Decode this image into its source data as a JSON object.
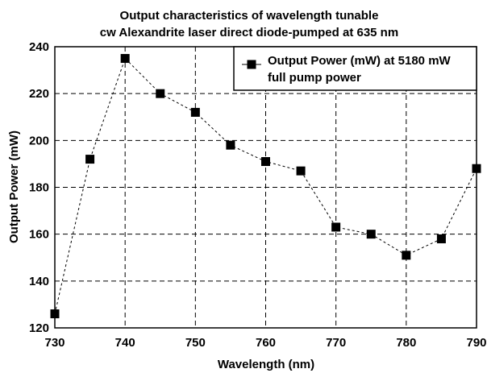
{
  "chart_data": {
    "type": "line",
    "title": "Output characteristics of wavelength tunable",
    "subtitle": "cw Alexandrite laser direct diode-pumped at 635 nm",
    "xlabel": "Wavelength (nm)",
    "ylabel": "Output Power (mW)",
    "xlim": [
      730,
      790
    ],
    "ylim": [
      120,
      240
    ],
    "xticks": [
      730,
      740,
      750,
      760,
      770,
      780,
      790
    ],
    "yticks": [
      120,
      140,
      160,
      180,
      200,
      220,
      240
    ],
    "grid": true,
    "legend_position": "top-right",
    "series": [
      {
        "name": "Output Power (mW) at 5180 mW full pump power",
        "name_lines": [
          "Output Power (mW) at 5180 mW",
          "full pump power"
        ],
        "marker": "square",
        "line_style": "dashed",
        "x": [
          730,
          735,
          740,
          745,
          750,
          755,
          760,
          765,
          770,
          775,
          780,
          785,
          790
        ],
        "y": [
          126,
          192,
          235,
          220,
          212,
          198,
          191,
          187,
          163,
          160,
          151,
          158,
          188
        ]
      }
    ]
  },
  "colors": {
    "series": "#000000",
    "background": "#ffffff",
    "grid": "#000000"
  }
}
